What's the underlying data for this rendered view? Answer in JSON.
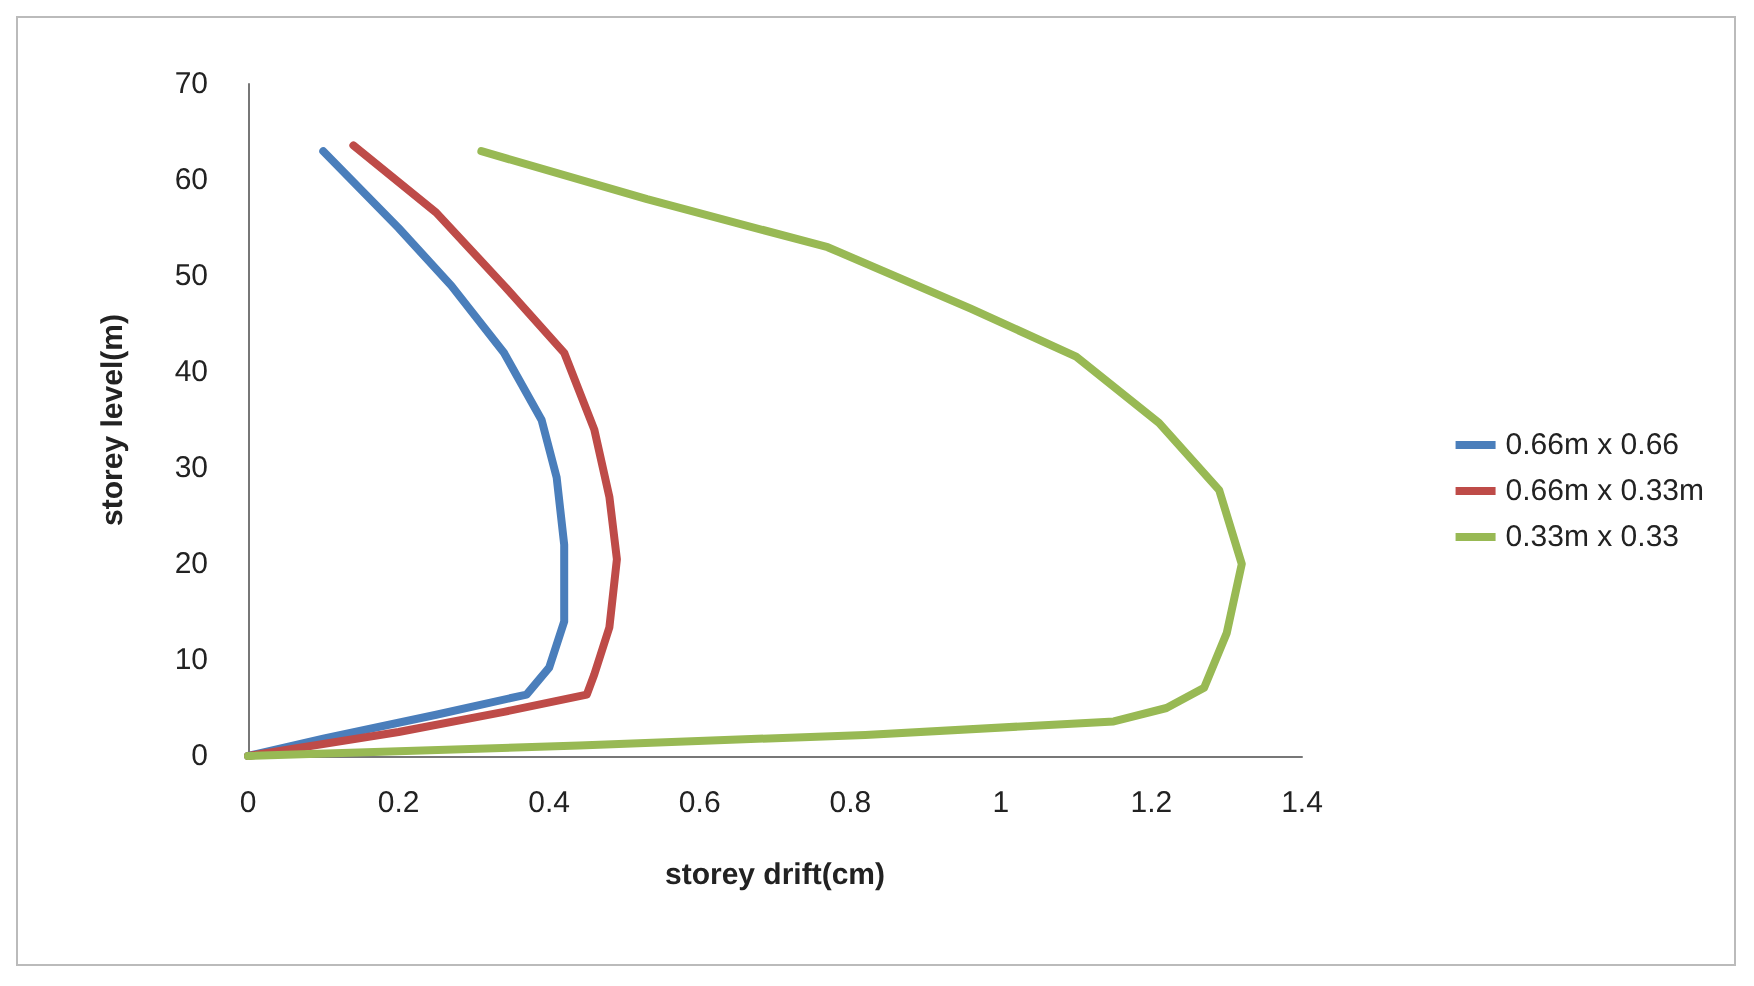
{
  "chart_data": {
    "type": "line",
    "xlabel": "storey drift(cm)",
    "ylabel": "storey level(m)",
    "xlim": [
      0,
      1.4
    ],
    "xticks": [
      0,
      0.2,
      0.4,
      0.6,
      0.8,
      1,
      1.2,
      1.4
    ],
    "ylim": [
      0,
      70
    ],
    "yticks": [
      0,
      10,
      20,
      30,
      40,
      50,
      60,
      70
    ],
    "grid": false,
    "legend": "right",
    "marker": "none",
    "line_style": "solid",
    "series": [
      {
        "name": "0.66m x 0.66",
        "color": "#4a7ebb",
        "x": [
          0,
          0.1,
          0.25,
          0.37,
          0.4,
          0.42,
          0.42,
          0.41,
          0.39,
          0.34,
          0.27,
          0.2,
          0.1
        ],
        "values": [
          0,
          1.8,
          4.3,
          6.4,
          9.2,
          14,
          22,
          29,
          35,
          42,
          49,
          55,
          63
        ]
      },
      {
        "name": "0.66m x 0.33m",
        "color": "#be4b48",
        "x": [
          0,
          0.2,
          0.34,
          0.45,
          0.46,
          0.48,
          0.49,
          0.48,
          0.46,
          0.42,
          0.34,
          0.25,
          0.14
        ],
        "values": [
          0,
          2.5,
          4.6,
          6.4,
          8.5,
          13.4,
          20.5,
          27,
          34,
          42,
          49,
          56.6,
          63.6
        ]
      },
      {
        "name": "0.33m x 0.33",
        "color": "#98b954",
        "x": [
          0,
          0.44,
          0.82,
          1.15,
          1.22,
          1.27,
          1.3,
          1.32,
          1.29,
          1.21,
          1.1,
          0.96,
          0.77,
          0.53,
          0.31
        ],
        "values": [
          0,
          1.1,
          2.2,
          3.6,
          5,
          7.1,
          12.8,
          20,
          27.7,
          34.7,
          41.6,
          46.6,
          53,
          58,
          63
        ]
      }
    ]
  }
}
